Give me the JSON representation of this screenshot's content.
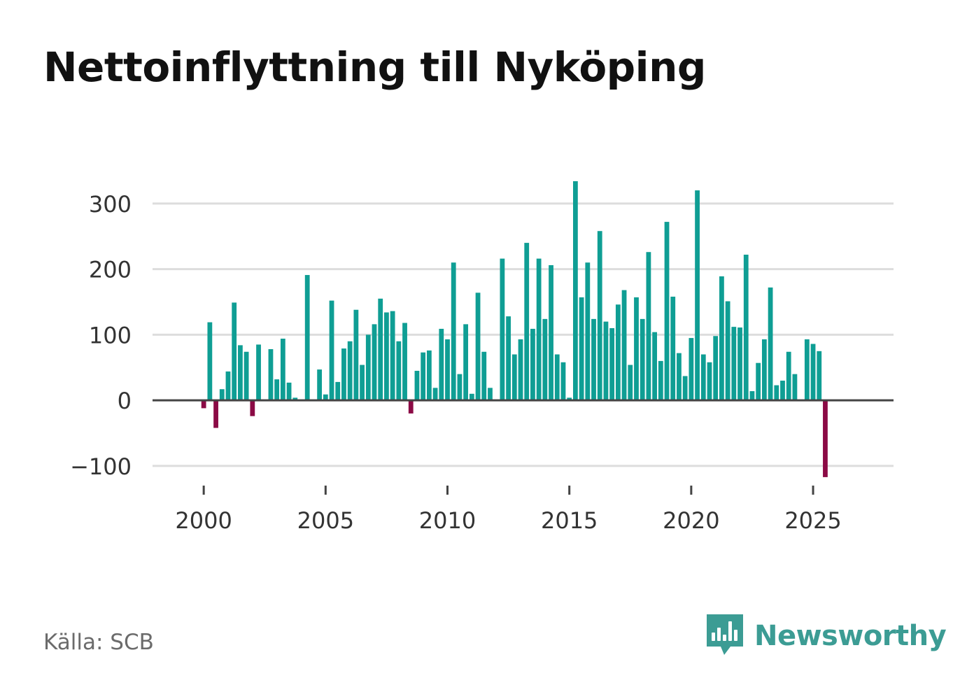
{
  "title": "Nettoinflyttning till Nyköping",
  "source": "Källa: SCB",
  "brand": {
    "name": "Newsworthy",
    "icon": "newsworthy-chart-bubble-icon"
  },
  "colors": {
    "positive": "#0f9e94",
    "negative": "#8b0a45",
    "grid": "#dddddd",
    "zero_line": "#444444",
    "brand": "#3c9c94"
  },
  "chart_data": {
    "type": "bar",
    "title": "Nettoinflyttning till Nyköping",
    "xlabel": "",
    "ylabel": "",
    "ylim": [
      -115,
      335
    ],
    "xlim": [
      1997.9,
      2028.3
    ],
    "yticks": [
      -100,
      0,
      100,
      200,
      300
    ],
    "ytick_labels": [
      "−100",
      "0",
      "100",
      "200",
      "300"
    ],
    "xticks": [
      2000,
      2005,
      2010,
      2015,
      2020,
      2025
    ],
    "xtick_labels": [
      "2000",
      "2005",
      "2010",
      "2015",
      "2020",
      "2025"
    ],
    "grid": true,
    "period": "quarterly",
    "x_start": 2000,
    "values": [
      -12,
      119,
      -42,
      17,
      44,
      149,
      84,
      74,
      -24,
      85,
      0,
      78,
      32,
      94,
      27,
      4,
      0,
      191,
      0,
      47,
      9,
      152,
      28,
      79,
      90,
      138,
      54,
      100,
      116,
      155,
      134,
      136,
      90,
      118,
      -20,
      45,
      73,
      76,
      19,
      109,
      93,
      210,
      40,
      116,
      10,
      164,
      74,
      19,
      0,
      216,
      128,
      70,
      93,
      240,
      109,
      216,
      124,
      206,
      70,
      58,
      4,
      334,
      157,
      210,
      124,
      258,
      120,
      110,
      146,
      168,
      54,
      157,
      124,
      226,
      104,
      60,
      272,
      158,
      72,
      37,
      95,
      320,
      70,
      58,
      98,
      189,
      151,
      112,
      111,
      222,
      14,
      57,
      93,
      172,
      23,
      30,
      74,
      40,
      0,
      93,
      86,
      75,
      -117
    ]
  }
}
